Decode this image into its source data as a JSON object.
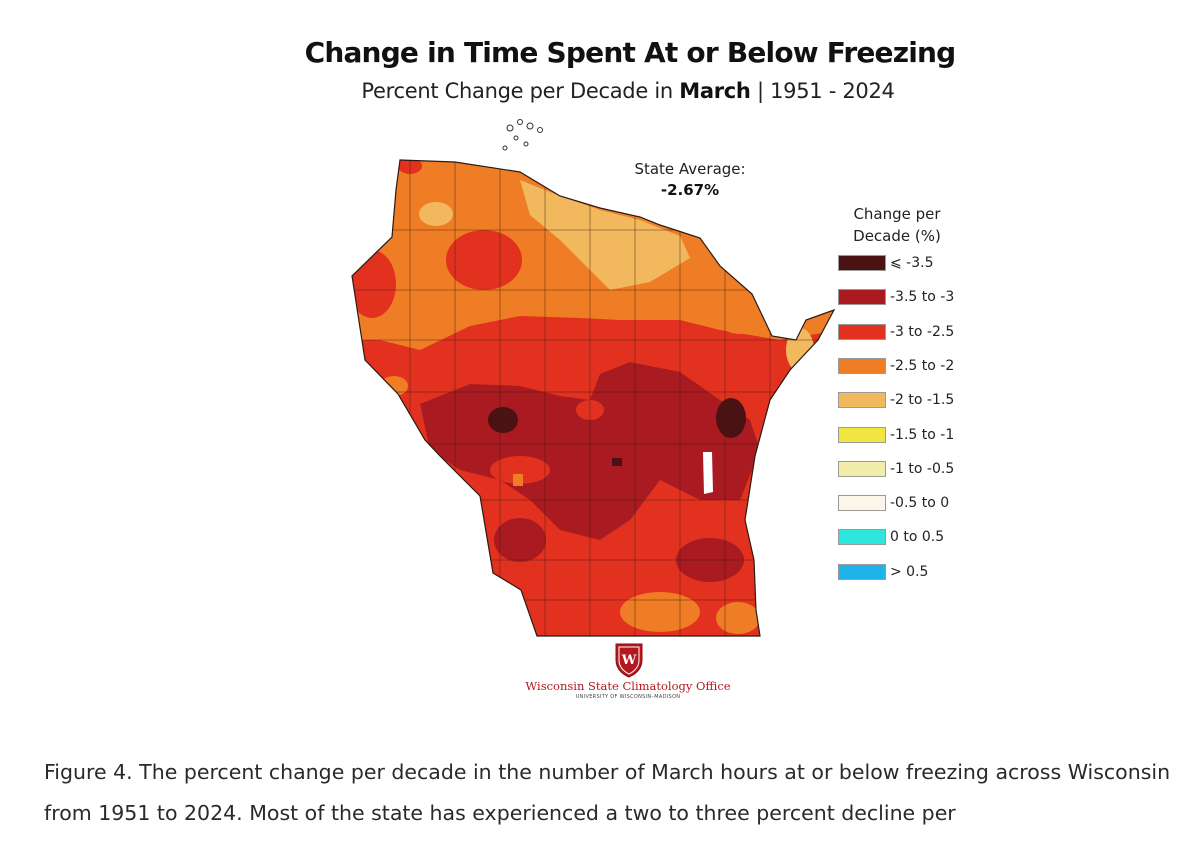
{
  "figure": {
    "title": "Change in Time Spent At or Below Freezing",
    "subtitle_prefix": "Percent Change per Decade in ",
    "subtitle_month": "March",
    "subtitle_suffix": " | 1951 - 2024",
    "state_average_label": "State Average:",
    "state_average_value": "-2.67%",
    "legend_title": "Change per Decade (%)",
    "legend": [
      {
        "label": "⩽ -3.5",
        "color": "#4a1212"
      },
      {
        "label": "-3.5 to -3",
        "color": "#a91b20"
      },
      {
        "label": "-3 to -2.5",
        "color": "#e2321f"
      },
      {
        "label": "-2.5 to -2",
        "color": "#ef7d25"
      },
      {
        "label": "-2 to -1.5",
        "color": "#f1b85e"
      },
      {
        "label": "-1.5 to -1",
        "color": "#f1e640"
      },
      {
        "label": "-1 to -0.5",
        "color": "#f2eeaa"
      },
      {
        "label": "-0.5 to 0",
        "color": "#faf7ea"
      },
      {
        "label": "0 to 0.5",
        "color": "#2ee6dc"
      },
      {
        "label": "> 0.5",
        "color": "#1eb4ea"
      }
    ],
    "logo_text": "Wisconsin State Climatology Office",
    "logo_subtext": "UNIVERSITY OF WISCONSIN–MADISON",
    "logo_colors": {
      "primary": "#b5171e"
    }
  },
  "caption": "Figure 4. The percent change per decade in the number of March hours at or below freezing across Wisconsin from 1951 to 2024. Most of the state has experienced a two to three percent decline per"
}
